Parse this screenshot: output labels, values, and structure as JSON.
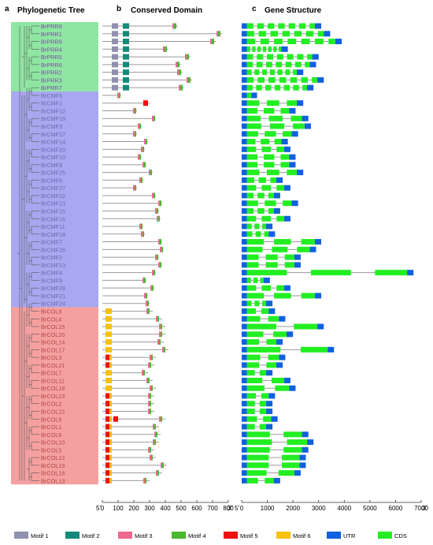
{
  "panels": {
    "a": {
      "letter": "a",
      "title": "Phylogenetic Tree"
    },
    "b": {
      "letter": "b",
      "title": "Conserved Domain"
    },
    "c": {
      "letter": "c",
      "title": "Gene Structure"
    }
  },
  "genes": [
    {
      "name": "BrPRR8",
      "clade": "PRR"
    },
    {
      "name": "BrPRR1",
      "clade": "PRR"
    },
    {
      "name": "BrPRR9",
      "clade": "PRR"
    },
    {
      "name": "BrPRR4",
      "clade": "PRR"
    },
    {
      "name": "BrPRR5",
      "clade": "PRR"
    },
    {
      "name": "BrPRR6",
      "clade": "PRR"
    },
    {
      "name": "BrPRR2",
      "clade": "PRR"
    },
    {
      "name": "BrPRR3",
      "clade": "PRR"
    },
    {
      "name": "BrPRR7",
      "clade": "PRR"
    },
    {
      "name": "BrCMF5",
      "clade": "CMF"
    },
    {
      "name": "BrCMF1",
      "clade": "CMF"
    },
    {
      "name": "BrCMF12",
      "clade": "CMF"
    },
    {
      "name": "BrCMF19",
      "clade": "CMF"
    },
    {
      "name": "BrCMF3",
      "clade": "CMF"
    },
    {
      "name": "BrCMF17",
      "clade": "CMF"
    },
    {
      "name": "BrCMF14",
      "clade": "CMF"
    },
    {
      "name": "BrCMF20",
      "clade": "CMF"
    },
    {
      "name": "BrCMF10",
      "clade": "CMF"
    },
    {
      "name": "BrCMF8",
      "clade": "CMF"
    },
    {
      "name": "BrCMF25",
      "clade": "CMF"
    },
    {
      "name": "BrCMF6",
      "clade": "CMF"
    },
    {
      "name": "BrCMF27",
      "clade": "CMF"
    },
    {
      "name": "BrCMF22",
      "clade": "CMF"
    },
    {
      "name": "BrCMF23",
      "clade": "CMF"
    },
    {
      "name": "BrCMF15",
      "clade": "CMF"
    },
    {
      "name": "BrCMF16",
      "clade": "CMF"
    },
    {
      "name": "BrCMF11",
      "clade": "CMF"
    },
    {
      "name": "BrCMF18",
      "clade": "CMF"
    },
    {
      "name": "BrCMF7",
      "clade": "CMF"
    },
    {
      "name": "BrCMF26",
      "clade": "CMF"
    },
    {
      "name": "BrCMF2",
      "clade": "CMF"
    },
    {
      "name": "BrCMF13",
      "clade": "CMF"
    },
    {
      "name": "BrCMF4",
      "clade": "CMF"
    },
    {
      "name": "BrCMF9",
      "clade": "CMF"
    },
    {
      "name": "BrCMF28",
      "clade": "CMF"
    },
    {
      "name": "BrCMF21",
      "clade": "CMF"
    },
    {
      "name": "BrCMF24",
      "clade": "CMF"
    },
    {
      "name": "BrCOL9",
      "clade": "COL"
    },
    {
      "name": "BrCOL4",
      "clade": "COL"
    },
    {
      "name": "BrCOL15",
      "clade": "COL"
    },
    {
      "name": "BrCOL20",
      "clade": "COL"
    },
    {
      "name": "BrCOL14",
      "clade": "COL"
    },
    {
      "name": "BrCOL17",
      "clade": "COL"
    },
    {
      "name": "BrCOL3",
      "clade": "COL"
    },
    {
      "name": "BrCOL21",
      "clade": "COL"
    },
    {
      "name": "BrCOL7",
      "clade": "COL"
    },
    {
      "name": "BrCOL11",
      "clade": "COL"
    },
    {
      "name": "BrCOL18",
      "clade": "COL"
    },
    {
      "name": "BrCOL23",
      "clade": "COL"
    },
    {
      "name": "BrCOL2",
      "clade": "COL"
    },
    {
      "name": "BrCOL22",
      "clade": "COL"
    },
    {
      "name": "BrCOL8",
      "clade": "COL"
    },
    {
      "name": "BrCOL1",
      "clade": "COL"
    },
    {
      "name": "BrCOL6",
      "clade": "COL"
    },
    {
      "name": "BrCOL10",
      "clade": "COL"
    },
    {
      "name": "BrCOL5",
      "clade": "COL"
    },
    {
      "name": "BrCOL12",
      "clade": "COL"
    },
    {
      "name": "BrCOL19",
      "clade": "COL"
    },
    {
      "name": "BrCOL16",
      "clade": "COL"
    },
    {
      "name": "BrCOL13",
      "clade": "COL"
    }
  ],
  "clade_colors": {
    "PRR": "#8fe6a2",
    "CMF": "#a8a8f0",
    "COL": "#f5a0a0"
  },
  "label_colors": {
    "PRR": "#7a4ea0",
    "CMF": "#6a6ab0",
    "COL": "#b04848"
  },
  "domain_axis": {
    "ticks": [
      "0",
      "100",
      "200",
      "300",
      "400",
      "500",
      "600",
      "700",
      "800"
    ],
    "range": [
      0,
      800
    ],
    "left_end": "5'",
    "right_end": "3'"
  },
  "gene_axis": {
    "ticks": [
      "0",
      "1000",
      "2000",
      "3000",
      "4000",
      "5000",
      "6000",
      "7000"
    ],
    "range": [
      0,
      7000
    ],
    "left_end": "5'",
    "right_end": "3'"
  },
  "legend": [
    {
      "label": "Motif 1",
      "color": "#9090b0"
    },
    {
      "label": "Motif 2",
      "color": "#138a7a"
    },
    {
      "label": "Motif 3",
      "color": "#f06890"
    },
    {
      "label": "Motif 4",
      "color": "#4cb830"
    },
    {
      "label": "Motif 5",
      "color": "#ee1111"
    },
    {
      "label": "Motif 6",
      "color": "#f8c010"
    },
    {
      "label": "UTR",
      "color": "#1060e0"
    },
    {
      "label": "CDS",
      "color": "#22ee22"
    }
  ]
}
